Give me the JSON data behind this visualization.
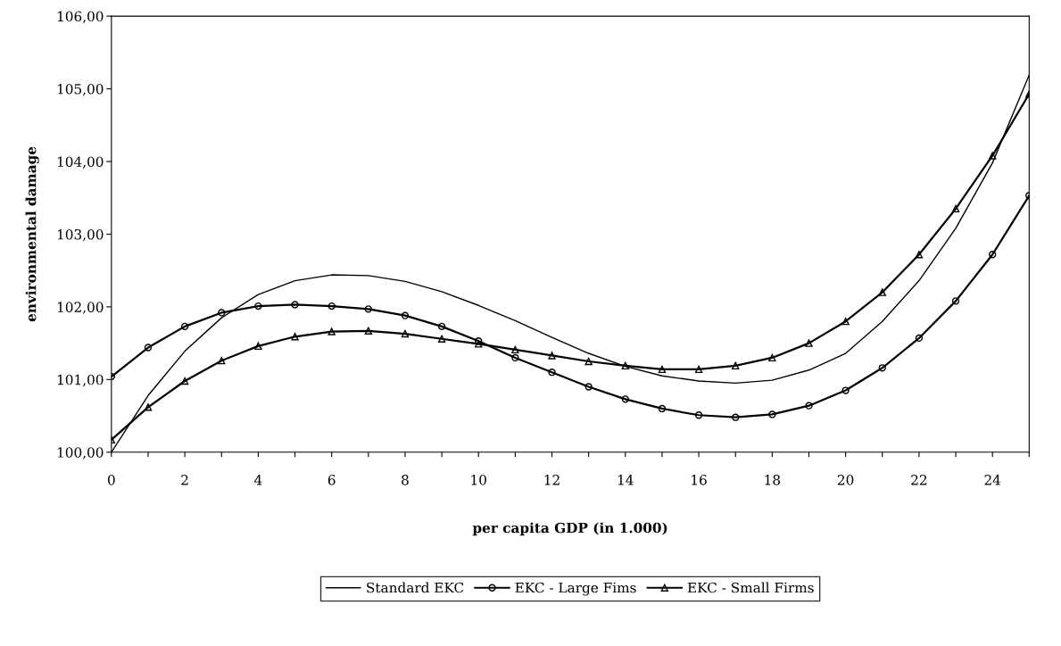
{
  "chart_data": {
    "type": "line",
    "xlabel": "per capita GDP (in 1.000)",
    "ylabel": "environmental damage",
    "x": [
      0,
      1,
      2,
      3,
      4,
      5,
      6,
      7,
      8,
      9,
      10,
      11,
      12,
      13,
      14,
      15,
      16,
      17,
      18,
      19,
      20,
      21,
      22,
      23,
      24,
      25
    ],
    "series": [
      {
        "name": "Standard EKC",
        "color": "#000000",
        "marker": "none",
        "values": [
          100.0,
          100.78,
          101.39,
          101.85,
          102.17,
          102.36,
          102.44,
          102.43,
          102.35,
          102.21,
          102.02,
          101.81,
          101.58,
          101.36,
          101.18,
          101.05,
          100.98,
          100.95,
          100.99,
          101.13,
          101.36,
          101.8,
          102.36,
          103.08,
          103.98,
          105.19
        ]
      },
      {
        "name": "EKC - Large Fims",
        "color": "#000000",
        "marker": "circle",
        "values": [
          101.04,
          101.44,
          101.73,
          101.92,
          102.01,
          102.03,
          102.01,
          101.97,
          101.88,
          101.73,
          101.53,
          101.3,
          101.1,
          100.9,
          100.73,
          100.6,
          100.51,
          100.48,
          100.52,
          100.64,
          100.85,
          101.16,
          101.57,
          102.08,
          102.72,
          103.53
        ]
      },
      {
        "name": "EKC - Small Firms",
        "color": "#000000",
        "marker": "triangle",
        "values": [
          100.17,
          100.62,
          100.98,
          101.26,
          101.46,
          101.59,
          101.66,
          101.67,
          101.63,
          101.56,
          101.49,
          101.41,
          101.33,
          101.25,
          101.19,
          101.14,
          101.14,
          101.19,
          101.3,
          101.5,
          101.8,
          102.2,
          102.72,
          103.35,
          104.08,
          104.93
        ]
      }
    ],
    "xlim": [
      0,
      25
    ],
    "xticks": [
      0,
      {
        "value": 1,
        "label": null
      },
      2,
      {
        "value": 3,
        "label": null
      },
      4,
      {
        "value": 5,
        "label": null
      },
      6,
      {
        "value": 7,
        "label": null
      },
      8,
      {
        "value": 9,
        "label": null
      },
      10,
      {
        "value": 11,
        "label": null
      },
      12,
      {
        "value": 13,
        "label": null
      },
      14,
      {
        "value": 15,
        "label": null
      },
      16,
      {
        "value": 17,
        "label": null
      },
      18,
      {
        "value": 19,
        "label": null
      },
      20,
      {
        "value": 21,
        "label": null
      },
      22,
      {
        "value": 23,
        "label": null
      },
      24,
      {
        "value": 25,
        "label": null
      }
    ],
    "ylim": [
      100,
      106
    ],
    "yticks": [
      {
        "value": 100,
        "label": "100,00"
      },
      {
        "value": 101,
        "label": "101,00"
      },
      {
        "value": 102,
        "label": "102,00"
      },
      {
        "value": 103,
        "label": "103,00"
      },
      {
        "value": 104,
        "label": "104,00"
      },
      {
        "value": 105,
        "label": "105,00"
      },
      {
        "value": 106,
        "label": "106,00"
      }
    ],
    "grid": false,
    "legend": "bottom"
  }
}
